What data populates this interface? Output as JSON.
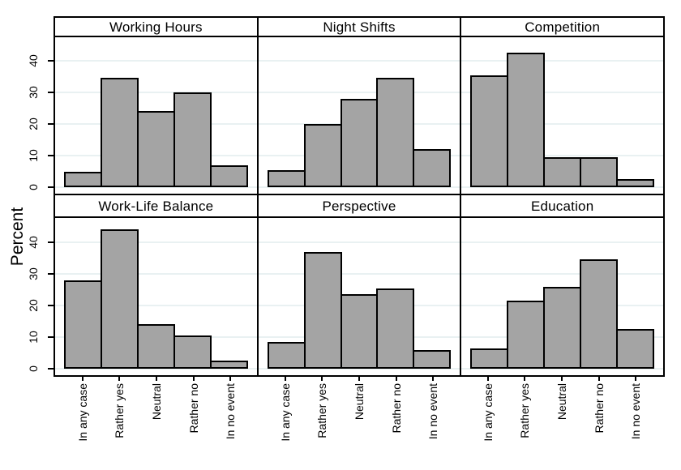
{
  "figure": {
    "background": "#ffffff"
  },
  "colors": {
    "bar_fill": "#a4a4a4",
    "bar_border": "#000000",
    "gridline": "#e9f1f2",
    "axis": "#000000"
  },
  "chart_data": {
    "type": "bar",
    "layout": {
      "rows": 2,
      "cols": 3
    },
    "title": "",
    "ylabel": "Percent",
    "xlabel": "",
    "ylim": [
      0,
      48
    ],
    "yticks": [
      0,
      10,
      20,
      30,
      40
    ],
    "grid": true,
    "legend": false,
    "categories": [
      "In any case",
      "Rather yes",
      "Neutral",
      "Rather no",
      "In no event"
    ],
    "panels": [
      {
        "title": "Working Hours",
        "values": [
          5,
          34.5,
          24,
          30,
          7
        ]
      },
      {
        "title": "Night Shifts",
        "values": [
          5.5,
          20,
          28,
          34.5,
          12
        ]
      },
      {
        "title": "Competition",
        "values": [
          35.5,
          42.5,
          9.5,
          9.5,
          2.5
        ]
      },
      {
        "title": "Work-Life Balance",
        "values": [
          28,
          44,
          14,
          10.5,
          2.5
        ]
      },
      {
        "title": "Perspective",
        "values": [
          8.5,
          37,
          23.5,
          25.5,
          6
        ]
      },
      {
        "title": "Education",
        "values": [
          6.5,
          21.5,
          26,
          34.5,
          12.5
        ]
      }
    ]
  }
}
